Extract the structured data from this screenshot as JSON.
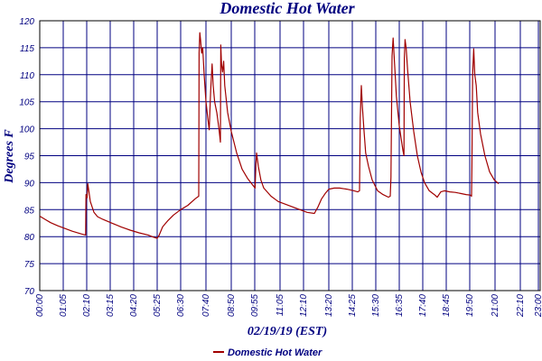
{
  "chart_data": {
    "type": "line",
    "title": "Domestic Hot Water",
    "xlabel": "02/19/19 (EST)",
    "ylabel": "Degrees F",
    "ylim": [
      70,
      120
    ],
    "y_ticks": [
      "70",
      "75",
      "80",
      "85",
      "90",
      "95",
      "100",
      "105",
      "110",
      "115",
      "120"
    ],
    "x_range_minutes": [
      0,
      1385
    ],
    "x_ticks": [
      "00:00",
      "01:05",
      "02:10",
      "03:15",
      "04:20",
      "05:25",
      "06:30",
      "07:40",
      "08:50",
      "09:55",
      "11:05",
      "12:10",
      "13:20",
      "14:25",
      "15:30",
      "16:35",
      "17:40",
      "18:45",
      "19:50",
      "21:00",
      "22:10",
      "23:00"
    ],
    "x_tick_minutes": [
      0,
      65,
      130,
      195,
      260,
      325,
      390,
      460,
      530,
      595,
      665,
      730,
      800,
      865,
      930,
      995,
      1060,
      1125,
      1190,
      1260,
      1330,
      1380
    ],
    "grid": true,
    "legend_position": "bottom-center",
    "line_color": "#a00000",
    "grid_color": "#000080",
    "series": [
      {
        "name": "Domestic Hot Water",
        "points": [
          [
            0,
            83.8
          ],
          [
            15,
            83.2
          ],
          [
            30,
            82.6
          ],
          [
            50,
            82.0
          ],
          [
            70,
            81.5
          ],
          [
            90,
            81.0
          ],
          [
            115,
            80.5
          ],
          [
            127,
            80.3
          ],
          [
            128,
            87.8
          ],
          [
            131,
            87.2
          ],
          [
            133,
            89.8
          ],
          [
            140,
            86.5
          ],
          [
            150,
            84.5
          ],
          [
            160,
            83.7
          ],
          [
            175,
            83.2
          ],
          [
            200,
            82.5
          ],
          [
            225,
            81.8
          ],
          [
            250,
            81.2
          ],
          [
            275,
            80.7
          ],
          [
            300,
            80.3
          ],
          [
            315,
            79.9
          ],
          [
            325,
            79.7
          ],
          [
            330,
            80.2
          ],
          [
            340,
            81.8
          ],
          [
            355,
            83.0
          ],
          [
            370,
            84.0
          ],
          [
            390,
            85.0
          ],
          [
            410,
            85.8
          ],
          [
            430,
            87.0
          ],
          [
            440,
            87.5
          ],
          [
            441,
            114.0
          ],
          [
            443,
            117.8
          ],
          [
            445,
            116.5
          ],
          [
            448,
            114.0
          ],
          [
            451,
            115.0
          ],
          [
            455,
            110.0
          ],
          [
            460,
            105.0
          ],
          [
            465,
            102.0
          ],
          [
            469,
            99.8
          ],
          [
            473,
            107.0
          ],
          [
            477,
            112.0
          ],
          [
            480,
            108.0
          ],
          [
            484,
            105.0
          ],
          [
            490,
            103.0
          ],
          [
            496,
            100.0
          ],
          [
            500,
            97.5
          ],
          [
            501,
            115.5
          ],
          [
            503,
            112.0
          ],
          [
            506,
            110.5
          ],
          [
            509,
            112.5
          ],
          [
            512,
            108.0
          ],
          [
            520,
            103.0
          ],
          [
            530,
            99.5
          ],
          [
            545,
            95.5
          ],
          [
            560,
            92.5
          ],
          [
            575,
            90.8
          ],
          [
            590,
            89.5
          ],
          [
            596,
            89.0
          ],
          [
            598,
            93.0
          ],
          [
            600,
            95.5
          ],
          [
            605,
            93.0
          ],
          [
            612,
            90.5
          ],
          [
            620,
            89.0
          ],
          [
            640,
            87.5
          ],
          [
            660,
            86.5
          ],
          [
            680,
            86.0
          ],
          [
            700,
            85.5
          ],
          [
            720,
            85.0
          ],
          [
            740,
            84.5
          ],
          [
            760,
            84.3
          ],
          [
            770,
            85.5
          ],
          [
            780,
            87.0
          ],
          [
            790,
            88.0
          ],
          [
            800,
            88.8
          ],
          [
            815,
            89.0
          ],
          [
            830,
            89.0
          ],
          [
            850,
            88.8
          ],
          [
            870,
            88.5
          ],
          [
            880,
            88.3
          ],
          [
            885,
            88.5
          ],
          [
            887,
            102.0
          ],
          [
            890,
            108.0
          ],
          [
            893,
            104.0
          ],
          [
            897,
            100.0
          ],
          [
            902,
            95.5
          ],
          [
            910,
            93.0
          ],
          [
            920,
            90.5
          ],
          [
            935,
            88.5
          ],
          [
            950,
            87.8
          ],
          [
            965,
            87.3
          ],
          [
            970,
            87.5
          ],
          [
            972,
            91.0
          ],
          [
            975,
            113.5
          ],
          [
            978,
            116.8
          ],
          [
            982,
            112.0
          ],
          [
            987,
            106.0
          ],
          [
            995,
            100.5
          ],
          [
            1005,
            96.0
          ],
          [
            1008,
            95.0
          ],
          [
            1009,
            113.0
          ],
          [
            1011,
            116.5
          ],
          [
            1014,
            115.0
          ],
          [
            1018,
            111.0
          ],
          [
            1025,
            105.0
          ],
          [
            1035,
            99.5
          ],
          [
            1045,
            95.0
          ],
          [
            1055,
            92.0
          ],
          [
            1065,
            90.0
          ],
          [
            1078,
            88.5
          ],
          [
            1092,
            87.8
          ],
          [
            1100,
            87.3
          ],
          [
            1110,
            88.3
          ],
          [
            1120,
            88.5
          ],
          [
            1135,
            88.3
          ],
          [
            1150,
            88.2
          ],
          [
            1165,
            88.0
          ],
          [
            1180,
            87.8
          ],
          [
            1192,
            87.7
          ],
          [
            1195,
            87.5
          ],
          [
            1196,
            93.0
          ],
          [
            1198,
            110.0
          ],
          [
            1201,
            114.8
          ],
          [
            1204,
            110.0
          ],
          [
            1208,
            108.0
          ],
          [
            1212,
            103.0
          ],
          [
            1220,
            99.0
          ],
          [
            1232,
            95.0
          ],
          [
            1245,
            92.0
          ],
          [
            1258,
            90.5
          ],
          [
            1270,
            89.8
          ]
        ]
      }
    ]
  }
}
